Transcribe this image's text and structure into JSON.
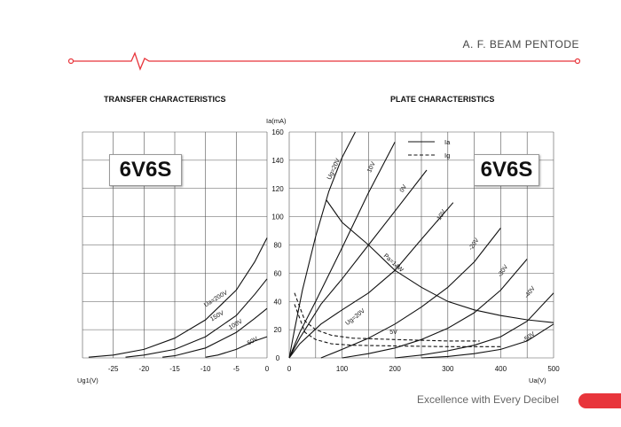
{
  "header": {
    "brand_title": "A. F. BEAM PENTODE",
    "accent_color": "#e8353b"
  },
  "footer": {
    "tagline": "Excellence with Every Decibel",
    "accent_color": "#e8353b"
  },
  "chart_data": [
    {
      "type": "line",
      "title": "TRANSFER CHARACTERISTICS",
      "model_label": "6V6S",
      "xlabel": "Ug1(V)",
      "ylabel": "Ia(mA)",
      "xlim": [
        -30,
        0
      ],
      "ylim": [
        0,
        160
      ],
      "x_ticks": [
        -25,
        -20,
        -15,
        -10,
        -5,
        0
      ],
      "y_ticks": [
        0,
        20,
        40,
        60,
        80,
        100,
        120,
        140,
        160
      ],
      "grid": true,
      "series": [
        {
          "name": "Ua=200V",
          "x": [
            -29,
            -25,
            -20,
            -15,
            -10,
            -5,
            -2,
            0
          ],
          "y": [
            0.5,
            2,
            6,
            14,
            27,
            48,
            68,
            85
          ]
        },
        {
          "name": "150V",
          "x": [
            -23,
            -20,
            -15,
            -10,
            -5,
            -2,
            0
          ],
          "y": [
            0.5,
            2,
            6,
            15,
            30,
            45,
            56
          ]
        },
        {
          "name": "100V",
          "x": [
            -17,
            -15,
            -10,
            -5,
            -2,
            0
          ],
          "y": [
            0.5,
            1.5,
            7,
            18,
            28,
            35
          ]
        },
        {
          "name": "50V",
          "x": [
            -10,
            -8,
            -5,
            -2,
            0
          ],
          "y": [
            0.5,
            2,
            6,
            12,
            15
          ]
        }
      ]
    },
    {
      "type": "line",
      "title": "PLATE CHARACTERISTICS",
      "model_label": "6V6S",
      "xlabel": "Ua(V)",
      "ylabel": "Ia(mA)",
      "xlim": [
        0,
        500
      ],
      "ylim": [
        0,
        160
      ],
      "x_ticks": [
        0,
        100,
        200,
        300,
        400,
        500
      ],
      "y_ticks": [
        0,
        20,
        40,
        60,
        80,
        100,
        120,
        140,
        160
      ],
      "grid": true,
      "legend": {
        "position": "top-right",
        "entries": [
          {
            "label": "Ia",
            "style": "solid"
          },
          {
            "label": "Ig",
            "style": "dashed"
          }
        ]
      },
      "series": [
        {
          "name": "Ug=20V",
          "style": "solid",
          "x": [
            0,
            10,
            25,
            50,
            75,
            100,
            125
          ],
          "y": [
            0,
            20,
            48,
            86,
            118,
            142,
            160
          ]
        },
        {
          "name": "10V",
          "style": "solid",
          "x": [
            0,
            20,
            50,
            100,
            150,
            200
          ],
          "y": [
            0,
            18,
            40,
            78,
            117,
            153
          ]
        },
        {
          "name": "0V",
          "style": "solid",
          "x": [
            0,
            20,
            60,
            100,
            150,
            200,
            260
          ],
          "y": [
            0,
            14,
            38,
            56,
            80,
            104,
            133
          ]
        },
        {
          "name": "-10V",
          "style": "solid",
          "x": [
            0,
            20,
            60,
            100,
            150,
            200,
            250,
            310
          ],
          "y": [
            0,
            10,
            24,
            34,
            46,
            62,
            84,
            110
          ]
        },
        {
          "name": "-20V",
          "style": "solid",
          "x": [
            60,
            100,
            150,
            200,
            250,
            300,
            350,
            400
          ],
          "y": [
            0,
            6,
            14,
            24,
            36,
            50,
            68,
            92
          ]
        },
        {
          "name": "-30V",
          "style": "solid",
          "x": [
            100,
            150,
            200,
            250,
            300,
            350,
            400,
            450
          ],
          "y": [
            0,
            3,
            7,
            13,
            21,
            32,
            48,
            70
          ]
        },
        {
          "name": "-40V",
          "style": "solid",
          "x": [
            200,
            250,
            300,
            350,
            400,
            450,
            500
          ],
          "y": [
            0,
            2,
            5,
            9,
            15,
            26,
            46
          ]
        },
        {
          "name": "-50V",
          "style": "solid",
          "x": [
            250,
            300,
            350,
            400,
            450,
            500
          ],
          "y": [
            0,
            1,
            3,
            6,
            12,
            24
          ]
        },
        {
          "name": "Pa=14W",
          "style": "solid",
          "x": [
            70,
            100,
            150,
            200,
            250,
            300,
            350,
            400,
            450,
            500
          ],
          "y": [
            112,
            96,
            80,
            62,
            50,
            40,
            34,
            30,
            27,
            25
          ]
        },
        {
          "name": "Ug=20V",
          "style": "dashed",
          "x": [
            10,
            20,
            30,
            50,
            80,
            120,
            200,
            300,
            360
          ],
          "y": [
            46,
            36,
            26,
            20,
            16,
            14,
            13,
            12,
            12
          ]
        },
        {
          "name": "5V",
          "style": "dashed",
          "x": [
            10,
            20,
            30,
            50,
            80,
            120,
            200,
            300,
            400
          ],
          "y": [
            38,
            28,
            18,
            13,
            10,
            9,
            8.5,
            8,
            8
          ]
        }
      ]
    }
  ]
}
